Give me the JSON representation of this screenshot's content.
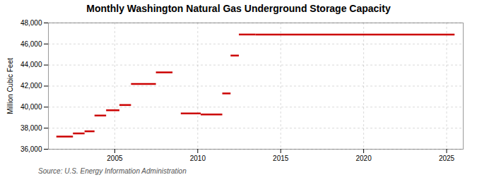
{
  "chart_data": {
    "type": "segment",
    "title": "Monthly Washington Natural Gas Underground Storage Capacity",
    "ylabel": "Million Cubic Feet",
    "source": "Source: U.S. Energy Information Administration",
    "color": "#cc0000",
    "grid": true,
    "xlim": [
      2001,
      2026
    ],
    "ylim": [
      36000,
      48000
    ],
    "xticks": [
      2005,
      2010,
      2015,
      2020,
      2025
    ],
    "yticks": [
      {
        "value": 36000,
        "label": "36,000"
      },
      {
        "value": 38000,
        "label": "38,000"
      },
      {
        "value": 40000,
        "label": "40,000"
      },
      {
        "value": 42000,
        "label": "42,000"
      },
      {
        "value": 44000,
        "label": "44,000"
      },
      {
        "value": 46000,
        "label": "46,000"
      },
      {
        "value": 48000,
        "label": "48,000"
      }
    ],
    "x0": [
      2001.5,
      2002.5,
      2003.2,
      2003.8,
      2004.5,
      2005.3,
      2006.0,
      2007.5,
      2009.0,
      2010.2,
      2011.5,
      2012.0,
      2012.5,
      2013.5
    ],
    "x1": [
      2002.5,
      2003.2,
      2003.8,
      2004.5,
      2005.3,
      2006.0,
      2007.5,
      2008.5,
      2010.2,
      2011.5,
      2012.0,
      2012.5,
      2013.5,
      2025.5
    ],
    "values": [
      37200,
      37500,
      37700,
      39200,
      39700,
      40200,
      42200,
      43300,
      39400,
      39300,
      41300,
      44900,
      46900,
      46900
    ]
  }
}
